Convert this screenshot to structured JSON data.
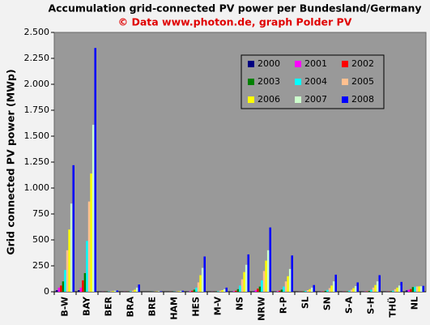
{
  "chart_data": {
    "type": "bar",
    "title": "Accumulation grid-connected PV power per Bundesland/Germany",
    "subtitle": "© Data www.photon.de, graph Polder PV",
    "y_label": "Grid connected PV power (MWp)",
    "categories": [
      "B-W",
      "BAY",
      "BER",
      "BRA",
      "BRE",
      "HAM",
      "HES",
      "M-V",
      "NS",
      "NRW",
      "R-P",
      "SL",
      "SN",
      "S-A",
      "S-H",
      "THÜ",
      "NL"
    ],
    "series": [
      {
        "name": "2000",
        "color": "#000080",
        "values": [
          15,
          15,
          1,
          0,
          0,
          0,
          2,
          0,
          2,
          5,
          2,
          0,
          1,
          0,
          1,
          0,
          13
        ]
      },
      {
        "name": "2001",
        "color": "#ff00ff",
        "values": [
          40,
          40,
          1,
          1,
          0,
          0,
          5,
          1,
          5,
          15,
          5,
          1,
          2,
          1,
          2,
          1,
          20
        ]
      },
      {
        "name": "2002",
        "color": "#ff0000",
        "values": [
          60,
          110,
          1,
          1,
          0,
          1,
          10,
          1,
          10,
          30,
          10,
          2,
          4,
          2,
          4,
          2,
          26
        ]
      },
      {
        "name": "2003",
        "color": "#008000",
        "values": [
          100,
          180,
          2,
          2,
          1,
          1,
          20,
          2,
          25,
          50,
          20,
          4,
          8,
          4,
          8,
          5,
          45
        ]
      },
      {
        "name": "2004",
        "color": "#00ffff",
        "values": [
          210,
          490,
          3,
          5,
          1,
          2,
          40,
          5,
          60,
          110,
          50,
          8,
          18,
          10,
          20,
          10,
          49
        ]
      },
      {
        "name": "2005",
        "color": "#ffc090",
        "values": [
          400,
          870,
          5,
          10,
          2,
          3,
          90,
          10,
          120,
          200,
          100,
          15,
          35,
          20,
          40,
          25,
          51
        ]
      },
      {
        "name": "2006",
        "color": "#ffff00",
        "values": [
          600,
          1140,
          7,
          20,
          3,
          5,
          160,
          15,
          190,
          300,
          150,
          25,
          60,
          35,
          65,
          40,
          52
        ]
      },
      {
        "name": "2007",
        "color": "#ccffcc",
        "values": [
          850,
          1610,
          10,
          40,
          4,
          7,
          230,
          25,
          260,
          400,
          220,
          40,
          100,
          55,
          100,
          60,
          53
        ]
      },
      {
        "name": "2008",
        "color": "#0000ff",
        "values": [
          1220,
          2350,
          12,
          70,
          5,
          10,
          340,
          40,
          360,
          620,
          350,
          65,
          165,
          90,
          160,
          95,
          57
        ]
      }
    ],
    "ylim": [
      0,
      2500
    ],
    "yticks": [
      0,
      250,
      500,
      750,
      {
        "value": 1000,
        "label": "1.000"
      },
      {
        "value": 1250,
        "label": "1.250"
      },
      {
        "value": 1500,
        "label": "1.500"
      },
      {
        "value": 1750,
        "label": "1.750"
      },
      {
        "value": 2000,
        "label": "2.000"
      },
      {
        "value": 2250,
        "label": "2.250"
      },
      {
        "value": 2500,
        "label": "2.500"
      }
    ],
    "grid": false,
    "legend_position": "top-right"
  }
}
